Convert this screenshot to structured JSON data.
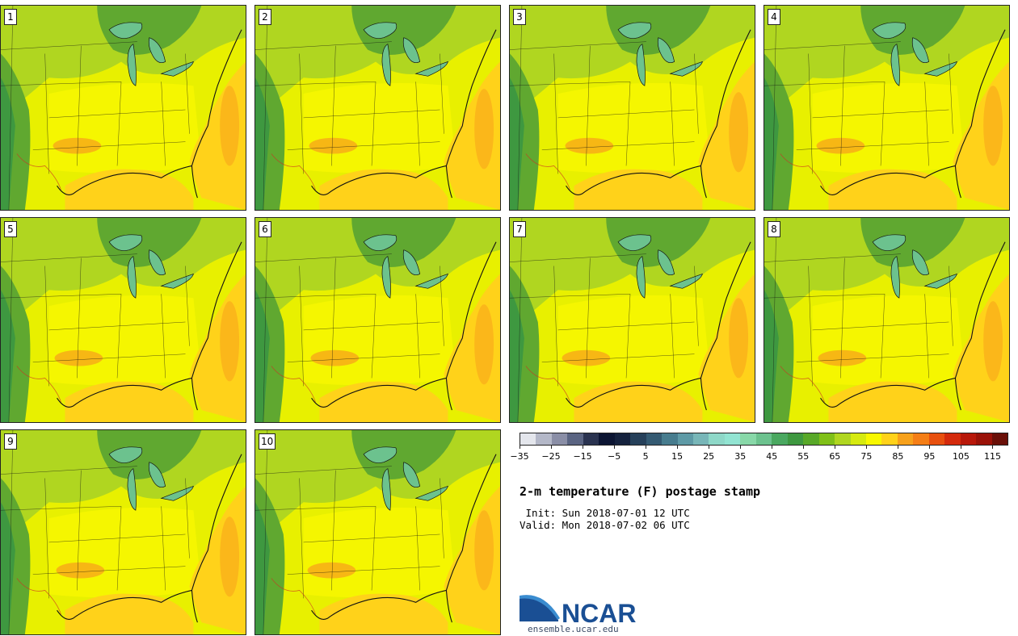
{
  "panels": [
    {
      "label": "1"
    },
    {
      "label": "2"
    },
    {
      "label": "3"
    },
    {
      "label": "4"
    },
    {
      "label": "5"
    },
    {
      "label": "6"
    },
    {
      "label": "7"
    },
    {
      "label": "8"
    },
    {
      "label": "9"
    },
    {
      "label": "10"
    }
  ],
  "map_colors": {
    "land_warm": "#e8f000",
    "land_yellow": "#f8f800",
    "land_green": "#b0d620",
    "land_darkgreen": "#60a830",
    "land_cool": "#3e9840",
    "lake": "#6cc28e",
    "ocean": "#ffd21a",
    "hot": "#f7a11b",
    "borders": "#111111"
  },
  "colorbar": {
    "colors": [
      "#e4e6ec",
      "#b4b8c8",
      "#8a8ea6",
      "#5a6482",
      "#2a3350",
      "#0c1533",
      "#15223e",
      "#26405a",
      "#345a72",
      "#477c8e",
      "#5e9aa6",
      "#78b6b8",
      "#8ed8c8",
      "#92e4d2",
      "#88d8a8",
      "#6cc28e",
      "#4aa860",
      "#3e9840",
      "#58a828",
      "#80c018",
      "#b0d620",
      "#d6ea10",
      "#f8f800",
      "#ffd21a",
      "#f7a11b",
      "#f57e16",
      "#e8500f",
      "#d42a0c",
      "#b8180a",
      "#9a1208",
      "#6a1008"
    ],
    "tick_labels": [
      "−35",
      "−25",
      "−15",
      "−5",
      "5",
      "15",
      "25",
      "35",
      "45",
      "55",
      "65",
      "75",
      "85",
      "95",
      "105",
      "115"
    ]
  },
  "title": "2-m temperature (F) postage stamp",
  "init_line": " Init: Sun 2018-07-01 12 UTC",
  "valid_line": "Valid: Mon 2018-07-02 06 UTC",
  "logo": {
    "text": "NCAR",
    "url": "ensemble.ucar.edu",
    "blue": "#1a4f94",
    "light_blue": "#3a8cd0"
  }
}
